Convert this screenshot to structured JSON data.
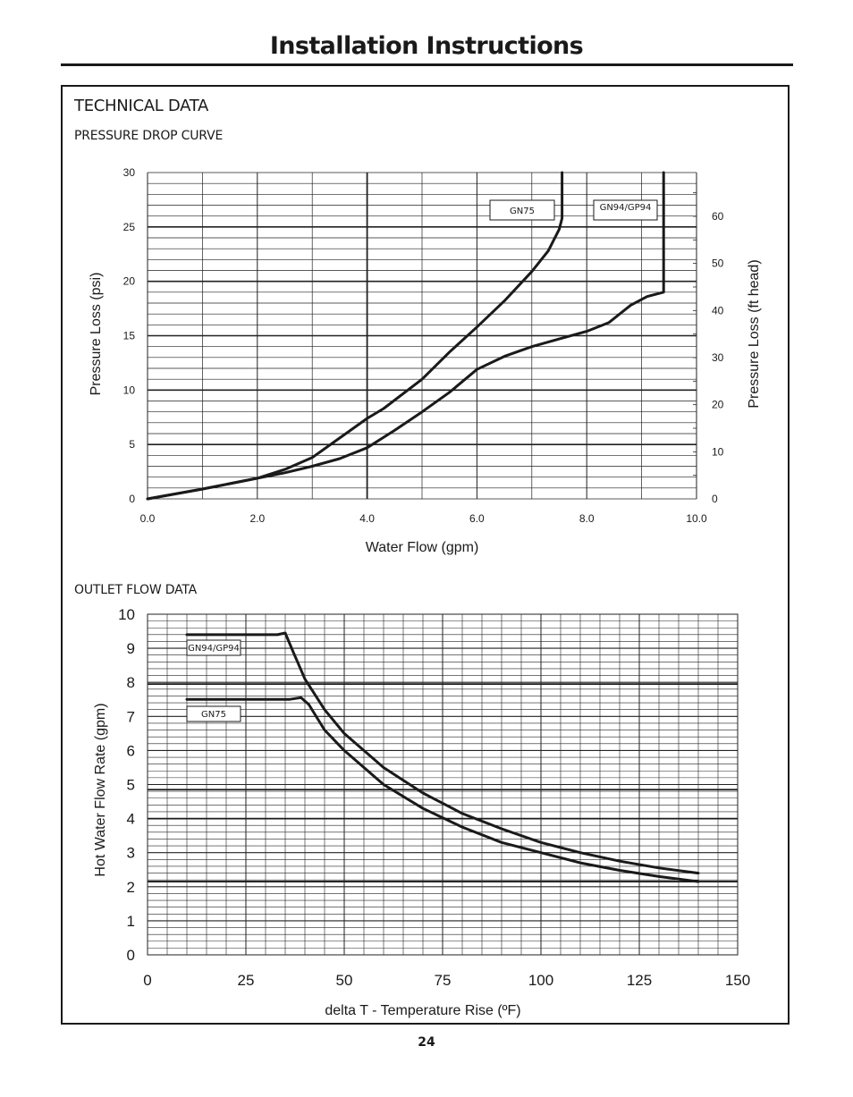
{
  "header": {
    "title": "Installation Instructions"
  },
  "section": {
    "title": "TECHNICAL DATA"
  },
  "footer": {
    "page_number": "24"
  },
  "chart_data": [
    {
      "type": "line",
      "title": "PRESSURE DROP CURVE",
      "xlabel": "Water Flow (gpm)",
      "ylabel": "Pressure Loss (psi)",
      "y2label": "Pressure Loss (ft head)",
      "xlim": [
        0,
        10
      ],
      "ylim": [
        0,
        30
      ],
      "y2lim": [
        0,
        69.3
      ],
      "xticks": [
        "0.0",
        "2.0",
        "4.0",
        "6.0",
        "8.0",
        "10.0"
      ],
      "xtick_values": [
        0,
        2,
        4,
        6,
        8,
        10
      ],
      "yticks": [
        "0",
        "5",
        "10",
        "15",
        "20",
        "25",
        "30"
      ],
      "ytick_values": [
        0,
        5,
        10,
        15,
        20,
        25,
        30
      ],
      "y2ticks": [
        "0",
        "10",
        "20",
        "30",
        "40",
        "50",
        "60"
      ],
      "y2tick_values": [
        0,
        10,
        20,
        30,
        40,
        50,
        60
      ],
      "grid": true,
      "series": [
        {
          "name": "GN75",
          "points": [
            [
              0,
              0
            ],
            [
              1,
              0.9
            ],
            [
              2,
              1.9
            ],
            [
              2.5,
              2.7
            ],
            [
              3,
              3.8
            ],
            [
              3.5,
              5.6
            ],
            [
              4,
              7.4
            ],
            [
              4.3,
              8.3
            ],
            [
              5,
              11
            ],
            [
              5.5,
              13.5
            ],
            [
              6,
              15.8
            ],
            [
              6.5,
              18.2
            ],
            [
              7,
              20.9
            ],
            [
              7.3,
              22.8
            ],
            [
              7.5,
              24.8
            ],
            [
              7.55,
              25.8
            ],
            [
              7.55,
              30
            ]
          ]
        },
        {
          "name": "GN94/GP94",
          "points": [
            [
              0,
              0
            ],
            [
              1,
              0.9
            ],
            [
              2,
              1.9
            ],
            [
              2.5,
              2.4
            ],
            [
              3,
              3
            ],
            [
              3.5,
              3.7
            ],
            [
              4,
              4.7
            ],
            [
              4.5,
              6.3
            ],
            [
              5,
              8
            ],
            [
              5.5,
              9.8
            ],
            [
              6,
              11.9
            ],
            [
              6.5,
              13.1
            ],
            [
              7,
              14
            ],
            [
              7.5,
              14.7
            ],
            [
              8,
              15.4
            ],
            [
              8.4,
              16.2
            ],
            [
              8.8,
              17.8
            ],
            [
              9.1,
              18.6
            ],
            [
              9.4,
              19
            ],
            [
              9.4,
              30
            ]
          ]
        }
      ]
    },
    {
      "type": "line",
      "title": "OUTLET FLOW DATA",
      "xlabel": "delta T - Temperature Rise (ºF)",
      "ylabel": "Hot Water Flow Rate (gpm)",
      "xlim": [
        0,
        150
      ],
      "ylim": [
        0,
        10
      ],
      "xticks": [
        "0",
        "25",
        "50",
        "75",
        "100",
        "125",
        "150"
      ],
      "xtick_values": [
        0,
        25,
        50,
        75,
        100,
        125,
        150
      ],
      "yticks": [
        "0",
        "1",
        "2",
        "3",
        "4",
        "5",
        "6",
        "7",
        "8",
        "9",
        "10"
      ],
      "ytick_values": [
        0,
        1,
        2,
        3,
        4,
        5,
        6,
        7,
        8,
        9,
        10
      ],
      "grid": true,
      "series": [
        {
          "name": "GN94/GP94",
          "points": [
            [
              10,
              9.4
            ],
            [
              33,
              9.4
            ],
            [
              35,
              9.45
            ],
            [
              37,
              8.9
            ],
            [
              40,
              8.1
            ],
            [
              45,
              7.2
            ],
            [
              50,
              6.5
            ],
            [
              60,
              5.5
            ],
            [
              70,
              4.75
            ],
            [
              80,
              4.15
            ],
            [
              90,
              3.7
            ],
            [
              100,
              3.3
            ],
            [
              110,
              3.0
            ],
            [
              120,
              2.75
            ],
            [
              130,
              2.55
            ],
            [
              140,
              2.4
            ]
          ]
        },
        {
          "name": "GN75",
          "points": [
            [
              10,
              7.5
            ],
            [
              36,
              7.5
            ],
            [
              39,
              7.55
            ],
            [
              41,
              7.35
            ],
            [
              45,
              6.6
            ],
            [
              50,
              6.0
            ],
            [
              60,
              5.0
            ],
            [
              70,
              4.3
            ],
            [
              80,
              3.75
            ],
            [
              90,
              3.3
            ],
            [
              100,
              3.0
            ],
            [
              110,
              2.7
            ],
            [
              120,
              2.48
            ],
            [
              130,
              2.3
            ],
            [
              140,
              2.15
            ]
          ]
        }
      ]
    }
  ]
}
